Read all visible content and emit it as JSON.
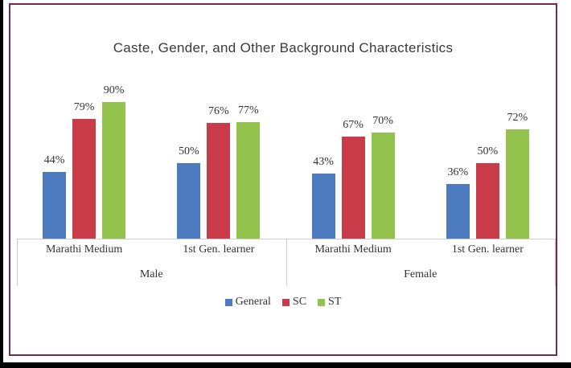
{
  "frame": {
    "border_color": "#712C4B",
    "page_background": "#FFFFFF",
    "outside_background": "#000000",
    "axis_line_color": "#CFCECF"
  },
  "chart_data": {
    "type": "bar",
    "title": "Caste, Gender, and Other Background Characteristics",
    "value_format": "percent",
    "ylim": [
      0,
      100
    ],
    "grid": false,
    "legend_position": "bottom",
    "categories": [
      "Marathi Medium",
      "1st Gen. learner",
      "Marathi Medium",
      "1st Gen. learner"
    ],
    "category_groups": [
      "Male",
      "Male",
      "Female",
      "Female"
    ],
    "group_labels": [
      "Male",
      "Female"
    ],
    "series": [
      {
        "name": "General",
        "color": "#4C7CBF",
        "values": [
          44,
          50,
          43,
          36
        ],
        "labels": [
          "44%",
          "50%",
          "43%",
          "36%"
        ]
      },
      {
        "name": "SC",
        "color": "#CA3B49",
        "values": [
          79,
          76,
          67,
          50
        ],
        "labels": [
          "79%",
          "76%",
          "67%",
          "50%"
        ]
      },
      {
        "name": "ST",
        "color": "#93C34D",
        "values": [
          90,
          77,
          70,
          72
        ],
        "labels": [
          "90%",
          "77%",
          "70%",
          "72%"
        ]
      }
    ]
  }
}
